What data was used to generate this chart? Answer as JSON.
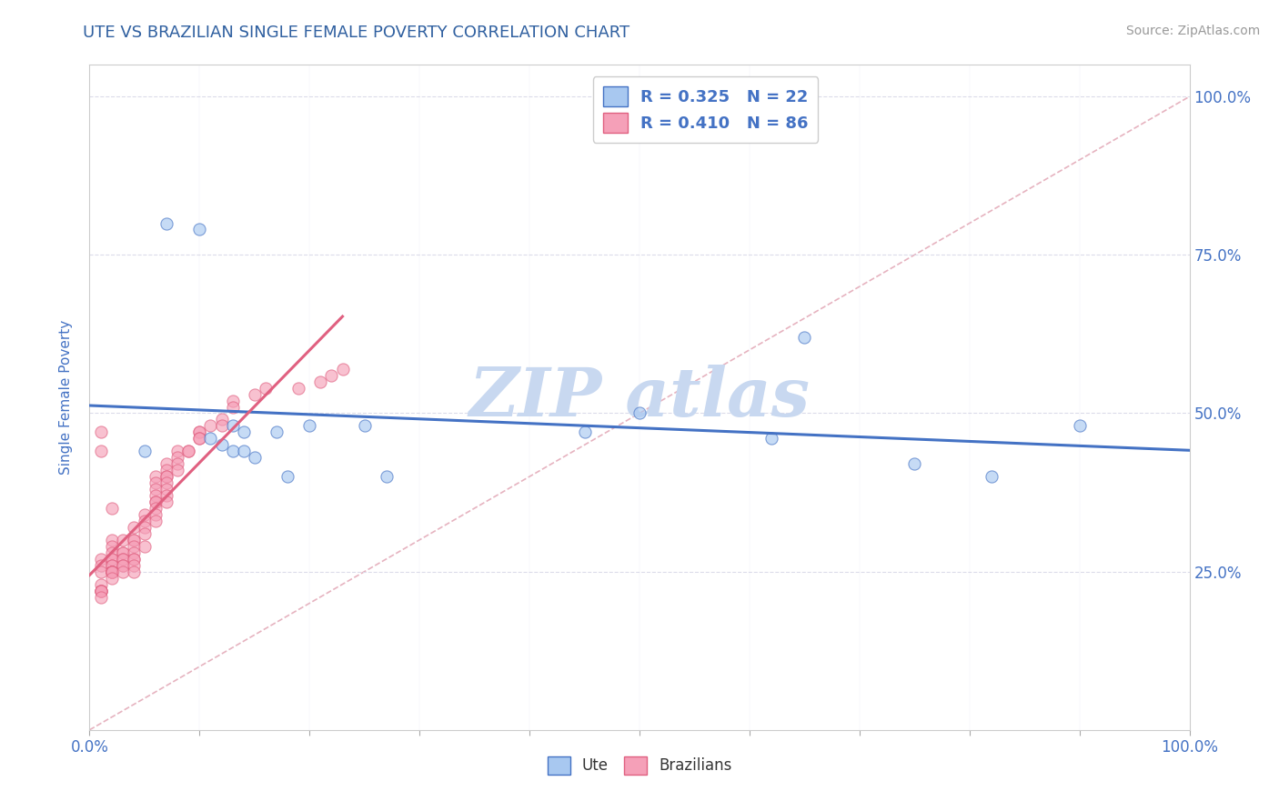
{
  "title": "UTE VS BRAZILIAN SINGLE FEMALE POVERTY CORRELATION CHART",
  "source_text": "Source: ZipAtlas.com",
  "xlabel": "",
  "ylabel": "Single Female Poverty",
  "legend_ute": "Ute",
  "legend_braz": "Brazilians",
  "r_ute": 0.325,
  "n_ute": 22,
  "r_braz": 0.41,
  "n_braz": 86,
  "ute_color": "#A8C8F0",
  "braz_color": "#F5A0B8",
  "ute_line_color": "#4472C4",
  "braz_line_color": "#E06080",
  "diag_line_color": "#E0A0B0",
  "title_color": "#3060A0",
  "axis_label_color": "#4472C4",
  "tick_label_color": "#4472C4",
  "watermark_color": "#C8D8F0",
  "background_color": "#FFFFFF",
  "ute_x": [
    0.07,
    0.1,
    0.11,
    0.13,
    0.13,
    0.14,
    0.14,
    0.15,
    0.17,
    0.18,
    0.2,
    0.25,
    0.27,
    0.45,
    0.5,
    0.62,
    0.65,
    0.75,
    0.82,
    0.9,
    0.05,
    0.12
  ],
  "ute_y": [
    0.8,
    0.79,
    0.46,
    0.44,
    0.48,
    0.44,
    0.47,
    0.43,
    0.47,
    0.4,
    0.48,
    0.48,
    0.4,
    0.47,
    0.5,
    0.46,
    0.62,
    0.42,
    0.4,
    0.48,
    0.44,
    0.45
  ],
  "braz_x": [
    0.01,
    0.01,
    0.01,
    0.01,
    0.01,
    0.01,
    0.01,
    0.01,
    0.01,
    0.01,
    0.01,
    0.02,
    0.02,
    0.02,
    0.02,
    0.02,
    0.02,
    0.02,
    0.02,
    0.02,
    0.02,
    0.02,
    0.02,
    0.02,
    0.02,
    0.02,
    0.03,
    0.03,
    0.03,
    0.03,
    0.03,
    0.03,
    0.03,
    0.03,
    0.04,
    0.04,
    0.04,
    0.04,
    0.04,
    0.04,
    0.04,
    0.04,
    0.04,
    0.05,
    0.05,
    0.05,
    0.05,
    0.05,
    0.06,
    0.06,
    0.06,
    0.06,
    0.06,
    0.06,
    0.06,
    0.06,
    0.06,
    0.07,
    0.07,
    0.07,
    0.07,
    0.07,
    0.07,
    0.07,
    0.07,
    0.08,
    0.08,
    0.08,
    0.08,
    0.09,
    0.09,
    0.1,
    0.1,
    0.1,
    0.1,
    0.11,
    0.12,
    0.12,
    0.13,
    0.13,
    0.15,
    0.16,
    0.19,
    0.21,
    0.22,
    0.23
  ],
  "braz_y": [
    0.44,
    0.27,
    0.26,
    0.25,
    0.23,
    0.22,
    0.22,
    0.22,
    0.22,
    0.21,
    0.47,
    0.35,
    0.3,
    0.29,
    0.28,
    0.27,
    0.27,
    0.26,
    0.26,
    0.25,
    0.25,
    0.25,
    0.25,
    0.25,
    0.25,
    0.24,
    0.3,
    0.28,
    0.28,
    0.27,
    0.27,
    0.26,
    0.26,
    0.25,
    0.32,
    0.3,
    0.3,
    0.29,
    0.28,
    0.27,
    0.27,
    0.26,
    0.25,
    0.34,
    0.33,
    0.32,
    0.31,
    0.29,
    0.4,
    0.39,
    0.38,
    0.37,
    0.36,
    0.36,
    0.35,
    0.34,
    0.33,
    0.42,
    0.41,
    0.4,
    0.4,
    0.39,
    0.38,
    0.37,
    0.36,
    0.44,
    0.43,
    0.42,
    0.41,
    0.44,
    0.44,
    0.47,
    0.47,
    0.46,
    0.46,
    0.48,
    0.49,
    0.48,
    0.52,
    0.51,
    0.53,
    0.54,
    0.54,
    0.55,
    0.56,
    0.57
  ],
  "xlim": [
    0.0,
    1.0
  ],
  "ylim": [
    0.0,
    1.05
  ],
  "xticks_shown": [
    0.0,
    1.0
  ],
  "xticklabels_shown": [
    "0.0%",
    "100.0%"
  ],
  "yticks": [
    0.25,
    0.5,
    0.75,
    1.0
  ],
  "yticklabels": [
    "25.0%",
    "50.0%",
    "75.0%",
    "100.0%"
  ],
  "marker_size": 90,
  "marker_alpha": 0.65,
  "marker_linewidth": 0.8,
  "grid_color": "#D8D8E8",
  "grid_yticks": [
    0.25,
    0.5,
    0.75,
    1.0
  ],
  "ute_line_start_x": 0.0,
  "ute_line_end_x": 1.0,
  "braz_line_start_x": 0.0,
  "braz_line_end_x": 0.23
}
